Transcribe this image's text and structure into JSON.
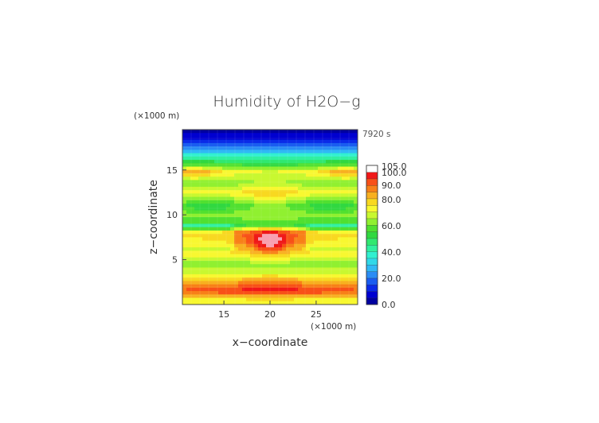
{
  "chart_data": {
    "type": "heatmap",
    "title": "Humidity of H2O−g",
    "xlabel": "x−coordinate",
    "ylabel": "z−coordinate",
    "x_unit": "(×1000 m)",
    "y_unit": "(×1000 m)",
    "time_label": "7920 s",
    "xlim": [
      10.5,
      29.5
    ],
    "ylim": [
      0,
      19.5
    ],
    "x_ticks": [
      15,
      20,
      25
    ],
    "y_ticks": [
      5,
      10,
      15
    ],
    "colorbar": {
      "labels": [
        "0.0",
        "20.0",
        "40.0",
        "60.0",
        "80.0",
        "90.0",
        "100.0",
        "105.0"
      ],
      "levels": [
        0,
        5,
        10,
        15,
        20,
        25,
        30,
        35,
        40,
        45,
        50,
        55,
        60,
        65,
        70,
        75,
        80,
        85,
        90,
        95,
        100,
        105
      ],
      "colors": [
        "#0000a0",
        "#0000d0",
        "#0a2ae8",
        "#1a5cf0",
        "#2a8cf5",
        "#30b8f5",
        "#30d8e8",
        "#30f0d0",
        "#30f0a0",
        "#30e870",
        "#30d840",
        "#50e030",
        "#90f030",
        "#c8f830",
        "#f8f830",
        "#f8d820",
        "#f8b020",
        "#f88018",
        "#f85018",
        "#f01818",
        "#ffffff"
      ],
      "top_color": "#f8a0b0"
    },
    "description_values": {
      "z_profile": [
        {
          "z": 19.5,
          "value": 2
        },
        {
          "z": 18.5,
          "value": 10
        },
        {
          "z": 17.5,
          "value": 22
        },
        {
          "z": 16.5,
          "value": 40
        },
        {
          "z": 15.5,
          "value": 58
        },
        {
          "z": 14.8,
          "value": 78
        },
        {
          "z": 13.5,
          "value": 62
        },
        {
          "z": 12.5,
          "value": 74
        },
        {
          "z": 11.0,
          "value": 58
        },
        {
          "z": 10.0,
          "value": 64
        },
        {
          "z": 8.8,
          "value": 52
        },
        {
          "z": 8.0,
          "value": 85
        },
        {
          "z": 7.0,
          "value": 82
        },
        {
          "z": 5.5,
          "value": 72
        },
        {
          "z": 4.5,
          "value": 62
        },
        {
          "z": 3.5,
          "value": 68
        },
        {
          "z": 2.5,
          "value": 80
        },
        {
          "z": 1.5,
          "value": 92
        },
        {
          "z": 0.5,
          "value": 72
        },
        {
          "z": 0.0,
          "value": 70
        }
      ]
    }
  }
}
